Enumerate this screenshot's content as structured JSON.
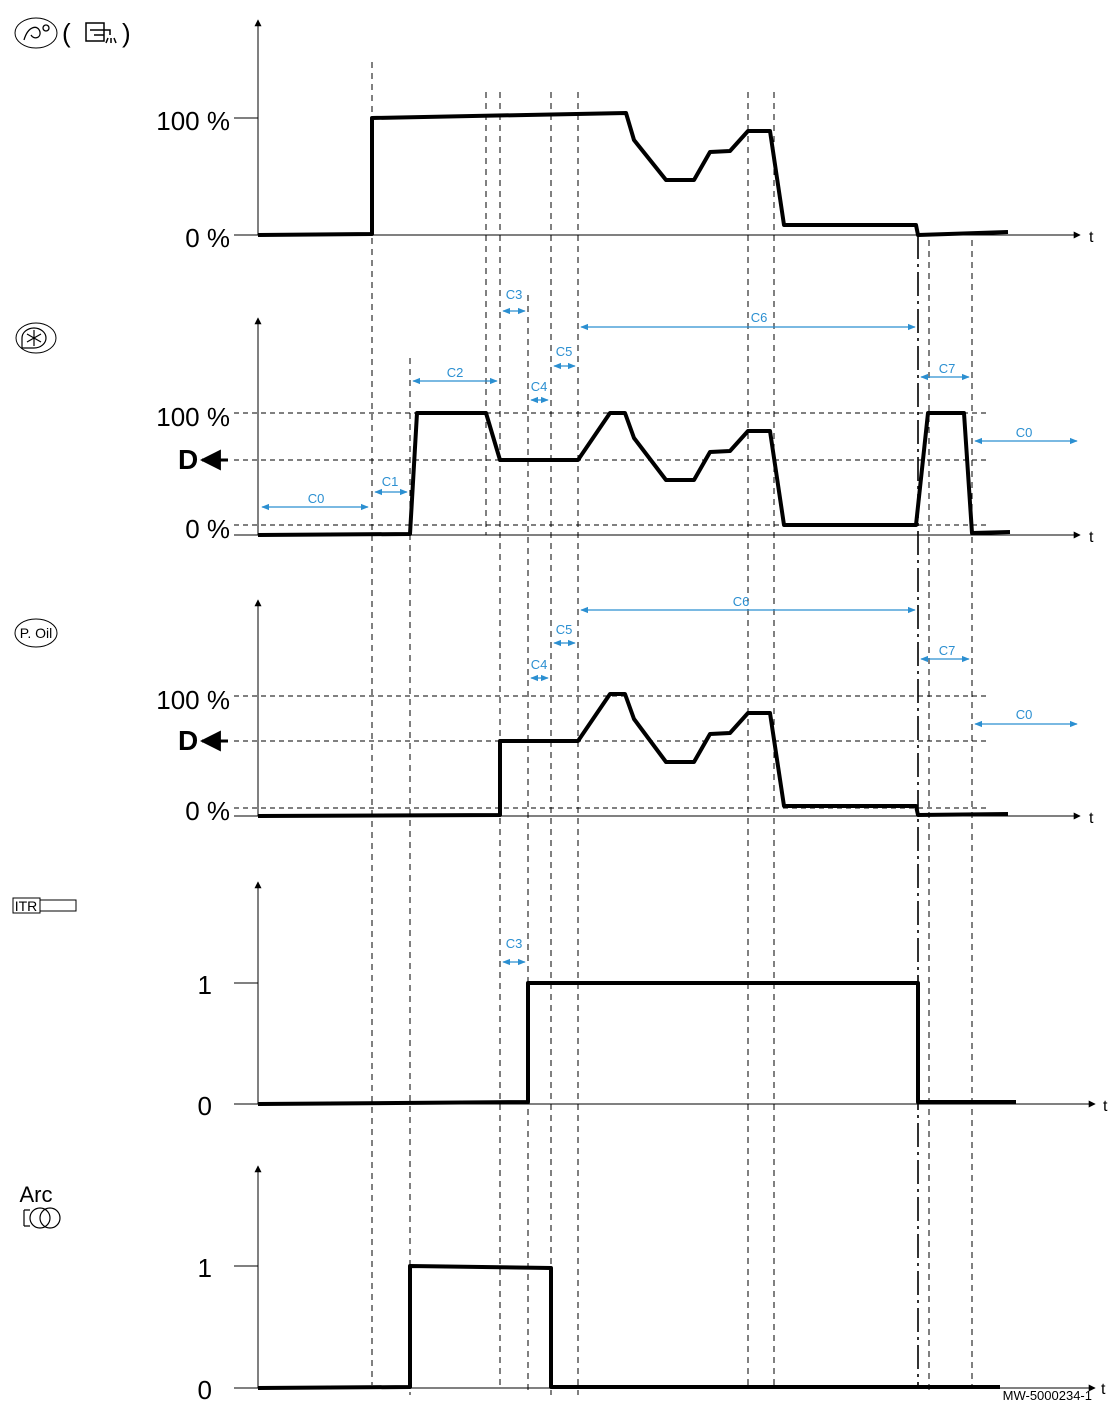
{
  "accent_color": "#2b8fd1",
  "signals": [
    {
      "id": "gas",
      "icon": "gas-valve-icon",
      "label_parts": [
        "(",
        ")"
      ],
      "y_labels": [
        "100 %",
        "0 %"
      ],
      "has_d": false
    },
    {
      "id": "fan",
      "icon": "fan-icon",
      "y_labels": [
        "100 %",
        "0 %"
      ],
      "d_label": "D",
      "has_d": true
    },
    {
      "id": "oil",
      "icon_text": "P. Oil",
      "y_labels": [
        "100 %",
        "0 %"
      ],
      "d_label": "D",
      "has_d": true
    },
    {
      "id": "itr",
      "icon_text": "ITR",
      "y_labels": [
        "1",
        "0"
      ],
      "has_d": false
    },
    {
      "id": "arc",
      "icon_text": "Arc",
      "y_labels": [
        "1",
        "0"
      ],
      "has_d": false
    }
  ],
  "time_label": "t",
  "dimensions": {
    "fan": [
      "C0",
      "C1",
      "C2",
      "C3",
      "C4",
      "C5",
      "C6",
      "C7",
      "C0"
    ],
    "oil": [
      "C4",
      "C5",
      "C6",
      "C7",
      "C0"
    ],
    "itr": [
      "C3"
    ]
  },
  "footer_code": "MW-5000234-1"
}
